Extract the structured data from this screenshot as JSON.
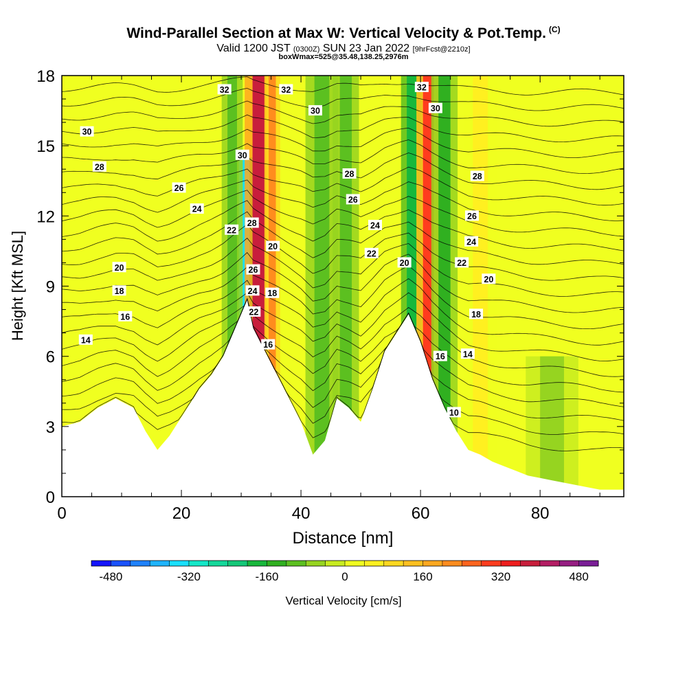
{
  "title": {
    "main": "Wind-Parallel Section at Max W: Vertical Velocity & Pot.Temp.",
    "copyright": "(C)",
    "valid_prefix": "Valid 1200 JST",
    "valid_utc": "(0300Z)",
    "valid_date": "SUN 23 Jan 2022",
    "forecast": "[9hrFcst@2210z]",
    "box_info": "boxWmax=525@35.48,138.25,2976m"
  },
  "chart_data": {
    "type": "heatmap",
    "xlabel": "Distance [nm]",
    "ylabel": "Height [Kft MSL]",
    "xlim": [
      0,
      94
    ],
    "ylim": [
      0,
      18
    ],
    "x_ticks": [
      0,
      20,
      40,
      60,
      80
    ],
    "y_ticks": [
      0,
      3,
      6,
      9,
      12,
      15,
      18
    ],
    "grid": false,
    "colorbar": {
      "label": "Vertical Velocity [cm/s]",
      "min": -520,
      "max": 520,
      "step": 40,
      "tick_values": [
        -480,
        -320,
        -160,
        0,
        160,
        320,
        480
      ],
      "colors": [
        "#1414ff",
        "#1a52ff",
        "#1f82ff",
        "#1fb4ff",
        "#19e0ff",
        "#14e8c8",
        "#14d89a",
        "#14c878",
        "#18b83c",
        "#30b020",
        "#5cc020",
        "#96d420",
        "#c8ec20",
        "#f0ff20",
        "#fff020",
        "#ffd820",
        "#ffc020",
        "#ffa820",
        "#ff8c1e",
        "#ff641e",
        "#ff3c1e",
        "#ee1e1e",
        "#c81e3c",
        "#b41e64",
        "#961e82",
        "#7a1e96"
      ]
    },
    "terrain_profile": {
      "x": [
        0,
        3,
        6,
        9,
        12,
        14,
        16,
        18,
        20,
        23,
        25,
        27,
        29,
        31,
        32,
        34,
        36,
        38,
        40,
        42,
        44,
        46,
        48,
        50,
        52,
        54,
        56,
        58,
        60,
        62,
        64,
        66,
        68,
        70,
        72,
        74,
        76,
        78,
        80,
        82,
        84,
        86,
        88,
        90,
        92,
        94
      ],
      "height": [
        3.0,
        3.2,
        3.8,
        4.2,
        3.8,
        2.8,
        2.0,
        2.6,
        3.4,
        4.6,
        5.2,
        6.0,
        7.2,
        8.4,
        7.2,
        6.2,
        5.2,
        4.2,
        3.2,
        1.8,
        2.4,
        4.2,
        3.8,
        3.2,
        4.6,
        6.2,
        7.0,
        7.8,
        6.6,
        5.0,
        3.8,
        2.8,
        2.0,
        1.8,
        1.5,
        1.3,
        1.1,
        0.9,
        0.8,
        0.7,
        0.6,
        0.5,
        0.4,
        0.3,
        0.3,
        0.3
      ]
    },
    "velocity_bands": [
      {
        "x": 30.5,
        "width": 1.8,
        "w": -360,
        "top": 14.5
      },
      {
        "x": 28.5,
        "width": 1.6,
        "w": -120,
        "top": 18
      },
      {
        "x": 33.0,
        "width": 2.2,
        "w": 380,
        "top": 18
      },
      {
        "x": 35.2,
        "width": 1.2,
        "w": 200,
        "top": 18
      },
      {
        "x": 43.5,
        "width": 2.5,
        "w": -120,
        "top": 18
      },
      {
        "x": 47.5,
        "width": 2.0,
        "w": -90,
        "top": 18
      },
      {
        "x": 58.5,
        "width": 1.6,
        "w": -200,
        "top": 18
      },
      {
        "x": 61.3,
        "width": 1.8,
        "w": 300,
        "top": 18
      },
      {
        "x": 64.0,
        "width": 2.0,
        "w": -130,
        "top": 18
      },
      {
        "x": 70.0,
        "width": 2.5,
        "w": 60,
        "top": 18
      },
      {
        "x": 82.0,
        "width": 4.0,
        "w": -60,
        "top": 6
      }
    ],
    "isentropes": {
      "levels": [
        10,
        12,
        14,
        16,
        18,
        20,
        22,
        24,
        26,
        28,
        30,
        32
      ],
      "labels": [
        {
          "text": "32",
          "x": 27.2,
          "y": 17.4
        },
        {
          "text": "32",
          "x": 37.5,
          "y": 17.4
        },
        {
          "text": "32",
          "x": 60.2,
          "y": 17.5
        },
        {
          "text": "30",
          "x": 4.2,
          "y": 15.6
        },
        {
          "text": "30",
          "x": 42.4,
          "y": 16.5
        },
        {
          "text": "30",
          "x": 62.5,
          "y": 16.6
        },
        {
          "text": "30",
          "x": 30.2,
          "y": 14.6
        },
        {
          "text": "28",
          "x": 6.3,
          "y": 14.1
        },
        {
          "text": "28",
          "x": 48.1,
          "y": 13.8
        },
        {
          "text": "28",
          "x": 69.5,
          "y": 13.7
        },
        {
          "text": "28",
          "x": 31.8,
          "y": 11.7
        },
        {
          "text": "26",
          "x": 19.6,
          "y": 13.2
        },
        {
          "text": "26",
          "x": 48.7,
          "y": 12.7
        },
        {
          "text": "26",
          "x": 68.6,
          "y": 12.0
        },
        {
          "text": "26",
          "x": 32.0,
          "y": 9.7
        },
        {
          "text": "24",
          "x": 22.6,
          "y": 12.3
        },
        {
          "text": "24",
          "x": 52.4,
          "y": 11.6
        },
        {
          "text": "24",
          "x": 68.5,
          "y": 10.9
        },
        {
          "text": "24",
          "x": 31.9,
          "y": 8.8
        },
        {
          "text": "22",
          "x": 28.4,
          "y": 11.4
        },
        {
          "text": "22",
          "x": 51.8,
          "y": 10.4
        },
        {
          "text": "22",
          "x": 66.9,
          "y": 10.0
        },
        {
          "text": "22",
          "x": 32.1,
          "y": 7.9
        },
        {
          "text": "20",
          "x": 9.6,
          "y": 9.8
        },
        {
          "text": "20",
          "x": 35.3,
          "y": 10.7
        },
        {
          "text": "20",
          "x": 57.3,
          "y": 10.0
        },
        {
          "text": "20",
          "x": 71.4,
          "y": 9.3
        },
        {
          "text": "18",
          "x": 9.6,
          "y": 8.8
        },
        {
          "text": "18",
          "x": 35.2,
          "y": 8.7
        },
        {
          "text": "18",
          "x": 69.3,
          "y": 7.8
        },
        {
          "text": "16",
          "x": 10.6,
          "y": 7.7
        },
        {
          "text": "16",
          "x": 34.5,
          "y": 6.5
        },
        {
          "text": "16",
          "x": 63.3,
          "y": 6.0
        },
        {
          "text": "14",
          "x": 4.0,
          "y": 6.7
        },
        {
          "text": "14",
          "x": 67.9,
          "y": 6.1
        },
        {
          "text": "10",
          "x": 65.6,
          "y": 3.6
        }
      ]
    }
  }
}
